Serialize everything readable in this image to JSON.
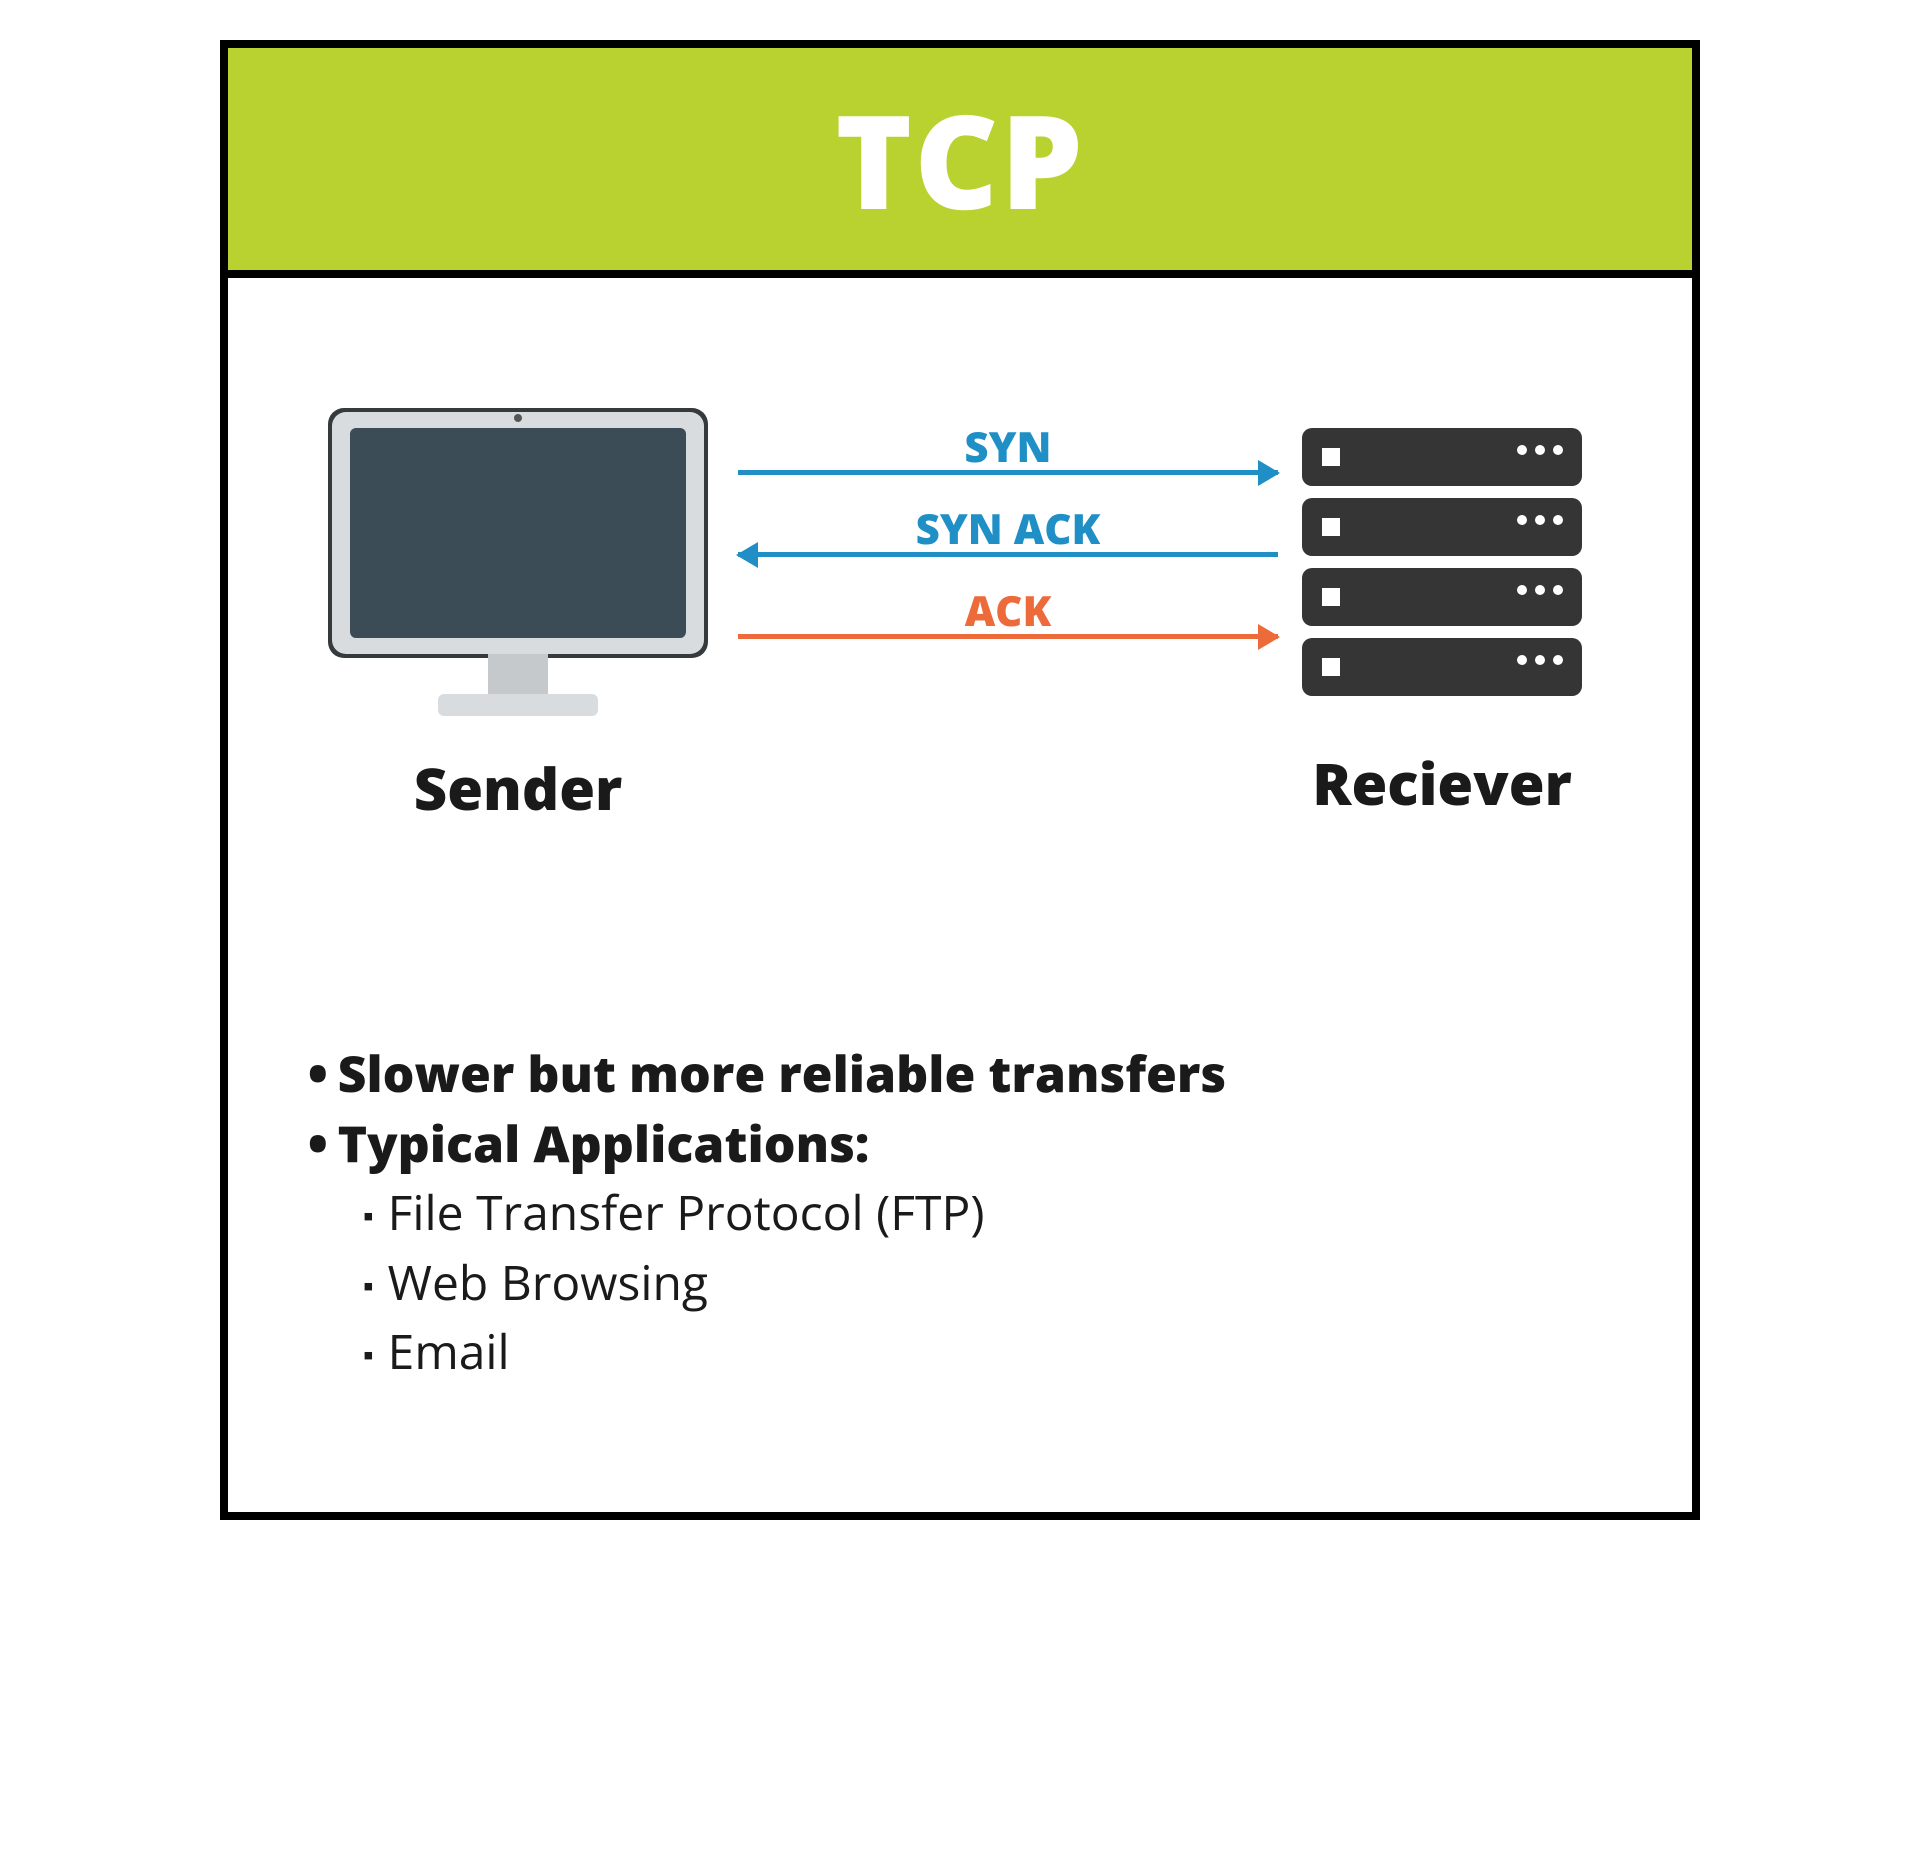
{
  "title": "TCP",
  "title_bg": "#b9d230",
  "title_color": "#ffffff",
  "sender_label": "Sender",
  "receiver_label": "Reciever",
  "monitor": {
    "bezel_color": "#d8dcde",
    "screen_color": "#3b4c56",
    "stand_color": "#c5c9cb"
  },
  "server": {
    "unit_color": "#353535",
    "led_color": "#ffffff",
    "units": 4
  },
  "arrows": [
    {
      "label": "SYN",
      "dir": "right",
      "color": "#1f8fc6"
    },
    {
      "label": "SYN ACK",
      "dir": "left",
      "color": "#1f8fc6"
    },
    {
      "label": "ACK",
      "dir": "right",
      "color": "#ed6b3a"
    }
  ],
  "bullets_main": [
    "Slower but more reliable transfers",
    "Typical Applications:"
  ],
  "bullets_sub": [
    "File Transfer Protocol (FTP)",
    "Web Browsing",
    "Email"
  ]
}
